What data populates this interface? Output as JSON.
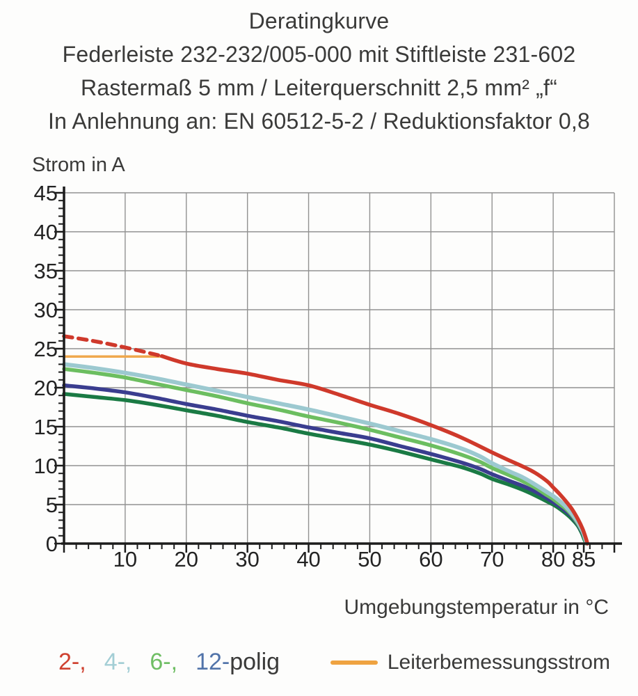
{
  "title": {
    "line1": "Deratingkurve",
    "line2": "Federleiste 232-232/005-000 mit Stiftleiste 231-602",
    "line3": "Rastermaß 5 mm / Leiterquerschnitt 2,5 mm² „f“",
    "line4": "In Anlehnung an: EN 60512-5-2 / Reduktionsfaktor 0,8"
  },
  "legend": {
    "poles": [
      {
        "label": "2-,",
        "color": "#cf4130"
      },
      {
        "label": "4-,",
        "color": "#a3ced5"
      },
      {
        "label": "6-,",
        "color": "#6fbe64"
      },
      {
        "label": "12-",
        "color": "#5173a9"
      }
    ],
    "poles_suffix": "polig",
    "rated": {
      "label": "Leiterbemessungsstrom",
      "color": "#efa341"
    }
  },
  "chart_data": {
    "type": "line",
    "title": "Deratingkurve",
    "xlabel": "Umgebungstemperatur in °C",
    "ylabel": "Strom in A",
    "xlim": [
      0,
      90
    ],
    "ylim": [
      0,
      45
    ],
    "x_major_ticks": [
      10,
      20,
      30,
      40,
      50,
      60,
      70,
      80,
      85
    ],
    "y_major_ticks": [
      0,
      5,
      10,
      15,
      20,
      25,
      30,
      35,
      40,
      45
    ],
    "x_minor_step": 2,
    "y_minor_step": 1,
    "grid": true,
    "grid_color": "#919191",
    "axis_color": "#1c1c1c",
    "series": [
      {
        "name": "Leiterbemessungsstrom",
        "color": "#f0a84d",
        "width": 3.5,
        "dashed": false,
        "points": [
          [
            0,
            24
          ],
          [
            16.2,
            24
          ]
        ]
      },
      {
        "name": "unlabeled (dark green)",
        "color": "#1a7a44",
        "width": 5.5,
        "dashed": false,
        "points": [
          [
            0,
            19.2
          ],
          [
            5,
            18.8
          ],
          [
            10,
            18.4
          ],
          [
            15,
            17.8
          ],
          [
            20,
            17.1
          ],
          [
            25,
            16.4
          ],
          [
            30,
            15.6
          ],
          [
            35,
            14.9
          ],
          [
            40,
            14.1
          ],
          [
            45,
            13.4
          ],
          [
            50,
            12.7
          ],
          [
            55,
            11.8
          ],
          [
            60,
            10.8
          ],
          [
            65,
            9.8
          ],
          [
            68,
            9.0
          ],
          [
            70,
            8.3
          ],
          [
            73,
            7.5
          ],
          [
            75,
            6.9
          ],
          [
            77,
            6.2
          ],
          [
            79,
            5.4
          ],
          [
            80,
            5.0
          ],
          [
            81,
            4.5
          ],
          [
            82,
            3.9
          ],
          [
            83,
            3.2
          ],
          [
            84,
            2.3
          ],
          [
            84.7,
            1.3
          ],
          [
            85.1,
            0.5
          ],
          [
            85.4,
            0
          ]
        ]
      },
      {
        "name": "12-polig",
        "color": "#3a3d8f",
        "width": 5.5,
        "dashed": false,
        "points": [
          [
            0,
            20.3
          ],
          [
            5,
            19.9
          ],
          [
            10,
            19.4
          ],
          [
            15,
            18.7
          ],
          [
            20,
            17.9
          ],
          [
            25,
            17.2
          ],
          [
            30,
            16.4
          ],
          [
            35,
            15.7
          ],
          [
            40,
            14.9
          ],
          [
            45,
            14.2
          ],
          [
            50,
            13.5
          ],
          [
            55,
            12.5
          ],
          [
            60,
            11.5
          ],
          [
            65,
            10.4
          ],
          [
            68,
            9.6
          ],
          [
            70,
            8.9
          ],
          [
            73,
            8.0
          ],
          [
            75,
            7.4
          ],
          [
            77,
            6.7
          ],
          [
            79,
            5.8
          ],
          [
            80,
            5.3
          ],
          [
            81,
            4.8
          ],
          [
            82,
            4.2
          ],
          [
            83,
            3.5
          ],
          [
            84,
            2.5
          ],
          [
            84.8,
            1.4
          ],
          [
            85.2,
            0.6
          ],
          [
            85.5,
            0
          ]
        ]
      },
      {
        "name": "6-polig",
        "color": "#6cbe60",
        "width": 5.5,
        "dashed": false,
        "points": [
          [
            0,
            22.4
          ],
          [
            5,
            21.9
          ],
          [
            10,
            21.3
          ],
          [
            15,
            20.5
          ],
          [
            20,
            19.7
          ],
          [
            25,
            18.9
          ],
          [
            30,
            18.0
          ],
          [
            35,
            17.2
          ],
          [
            40,
            16.3
          ],
          [
            45,
            15.5
          ],
          [
            50,
            14.6
          ],
          [
            55,
            13.6
          ],
          [
            60,
            12.6
          ],
          [
            65,
            11.4
          ],
          [
            68,
            10.5
          ],
          [
            70,
            9.7
          ],
          [
            73,
            8.7
          ],
          [
            75,
            8.0
          ],
          [
            77,
            7.2
          ],
          [
            79,
            6.2
          ],
          [
            80,
            5.7
          ],
          [
            81,
            5.1
          ],
          [
            82,
            4.5
          ],
          [
            83,
            3.7
          ],
          [
            84,
            2.6
          ],
          [
            84.8,
            1.5
          ],
          [
            85.2,
            0.6
          ],
          [
            85.5,
            0
          ]
        ]
      },
      {
        "name": "4-polig",
        "color": "#9cc9d0",
        "width": 6,
        "dashed": false,
        "points": [
          [
            0,
            23.0
          ],
          [
            5,
            22.5
          ],
          [
            10,
            21.9
          ],
          [
            15,
            21.2
          ],
          [
            20,
            20.4
          ],
          [
            25,
            19.6
          ],
          [
            30,
            18.8
          ],
          [
            35,
            18.0
          ],
          [
            40,
            17.2
          ],
          [
            45,
            16.3
          ],
          [
            50,
            15.4
          ],
          [
            55,
            14.4
          ],
          [
            60,
            13.4
          ],
          [
            65,
            12.2
          ],
          [
            68,
            11.2
          ],
          [
            70,
            10.3
          ],
          [
            73,
            9.2
          ],
          [
            75,
            8.5
          ],
          [
            77,
            7.6
          ],
          [
            79,
            6.6
          ],
          [
            80,
            6.1
          ],
          [
            81,
            5.5
          ],
          [
            82,
            4.8
          ],
          [
            83,
            3.9
          ],
          [
            84,
            2.8
          ],
          [
            84.8,
            1.6
          ],
          [
            85.2,
            0.7
          ],
          [
            85.5,
            0
          ]
        ]
      },
      {
        "name": "2-polig",
        "color": "#cf392b",
        "width": 5.5,
        "dashed": false,
        "points": [
          [
            16,
            24.05
          ],
          [
            20,
            23.1
          ],
          [
            25,
            22.4
          ],
          [
            30,
            21.8
          ],
          [
            35,
            21.0
          ],
          [
            40,
            20.3
          ],
          [
            45,
            19.1
          ],
          [
            50,
            17.8
          ],
          [
            55,
            16.6
          ],
          [
            60,
            15.2
          ],
          [
            65,
            13.6
          ],
          [
            70,
            11.7
          ],
          [
            73,
            10.6
          ],
          [
            75,
            9.9
          ],
          [
            77,
            9.1
          ],
          [
            79,
            8.0
          ],
          [
            80,
            7.2
          ],
          [
            81,
            6.4
          ],
          [
            82,
            5.5
          ],
          [
            83,
            4.5
          ],
          [
            84,
            3.2
          ],
          [
            84.8,
            1.9
          ],
          [
            85.3,
            0.8
          ],
          [
            85.6,
            0
          ]
        ]
      },
      {
        "name": "2-polig (gestrichelt)",
        "color": "#cf392b",
        "width": 5.5,
        "dashed": true,
        "points": [
          [
            0,
            26.6
          ],
          [
            4,
            26.1
          ],
          [
            8,
            25.5
          ],
          [
            12,
            24.8
          ],
          [
            16,
            24.05
          ]
        ]
      }
    ]
  }
}
